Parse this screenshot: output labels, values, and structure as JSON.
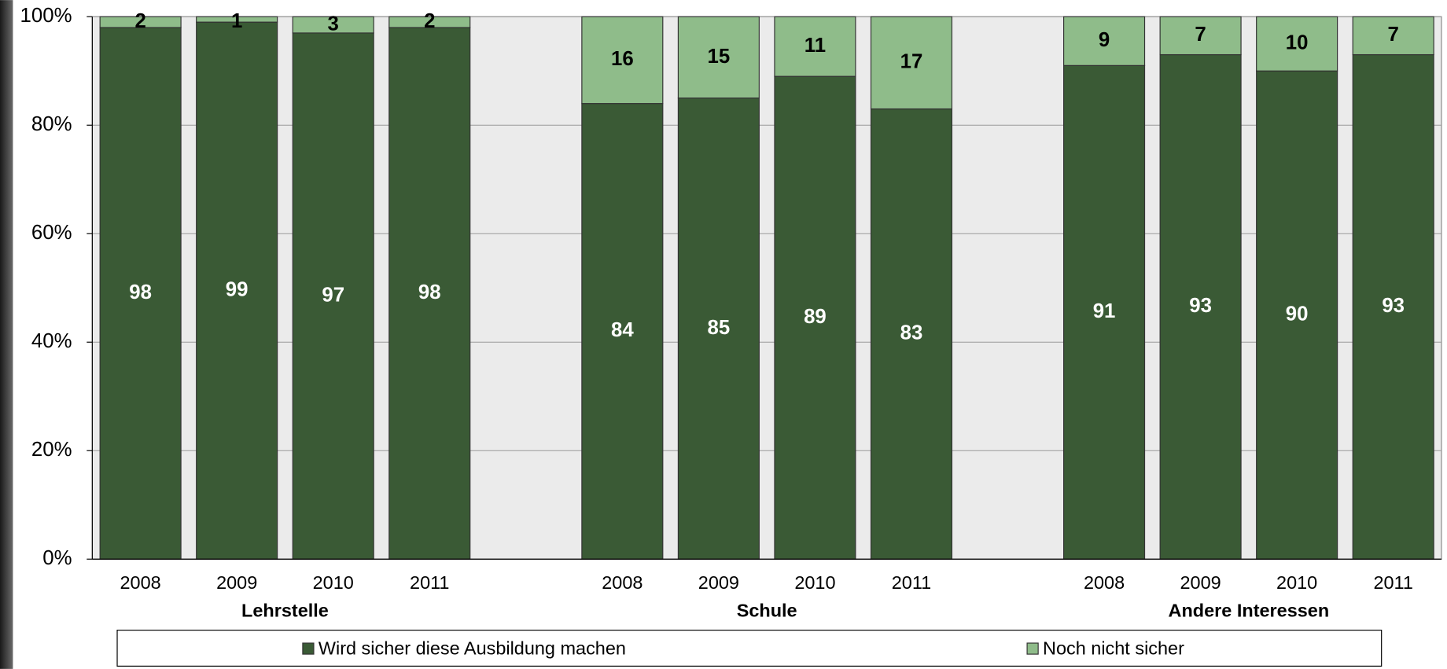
{
  "chart_data": {
    "type": "stacked-bar",
    "categories": [
      "2008",
      "2009",
      "2010",
      "2011",
      null,
      "2008",
      "2009",
      "2010",
      "2011",
      null,
      "2008",
      "2009",
      "2010",
      "2011"
    ],
    "groups": [
      "Lehrstelle",
      "Schule",
      "Andere Interessen"
    ],
    "series": [
      {
        "name": "Wird sicher diese Ausbildung machen",
        "color": "#3a5a35",
        "label_color": "#ffffff",
        "values": [
          98,
          99,
          97,
          98,
          null,
          84,
          85,
          89,
          83,
          null,
          91,
          93,
          90,
          93
        ]
      },
      {
        "name": "Noch nicht sicher",
        "color": "#8fbc8a",
        "label_color": "#000000",
        "values": [
          2,
          1,
          3,
          2,
          null,
          16,
          15,
          11,
          17,
          null,
          9,
          7,
          10,
          7
        ]
      }
    ],
    "ylim": [
      0,
      100
    ],
    "yticks": [
      {
        "value": 0,
        "label": "0%"
      },
      {
        "value": 20,
        "label": "20%"
      },
      {
        "value": 40,
        "label": "40%"
      },
      {
        "value": 60,
        "label": "60%"
      },
      {
        "value": 80,
        "label": "80%"
      },
      {
        "value": 100,
        "label": "100%"
      }
    ],
    "grid": true,
    "legend": "bottom"
  }
}
